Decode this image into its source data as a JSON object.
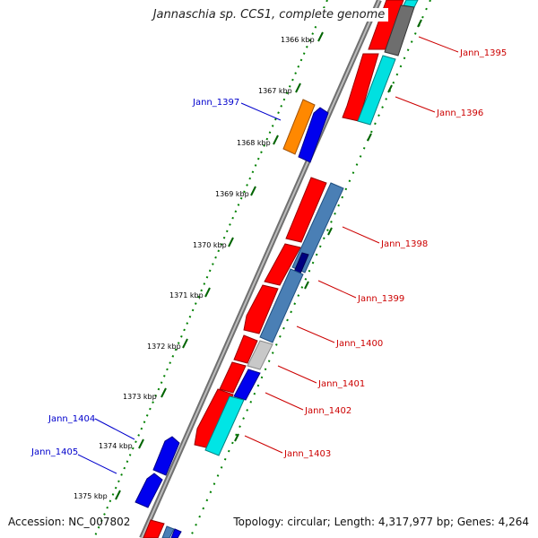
{
  "title": "Jannaschia sp. CCS1, complete genome",
  "footer": {
    "accession": "Accession: NC_007802",
    "topology": "Topology: circular; Length: 4,317,977 bp; Genes: 4,264"
  },
  "ruler": {
    "ticks": [
      "1366 kbp",
      "1367 kbp",
      "1368 kbp",
      "1369 kbp",
      "1370 kbp",
      "1371 kbp",
      "1372 kbp",
      "1373 kbp",
      "1374 kbp",
      "1375 kbp"
    ]
  },
  "genes": {
    "right_labels": [
      "Jann_1395",
      "Jann_1396",
      "Jann_1398",
      "Jann_1399",
      "Jann_1400",
      "Jann_1401",
      "Jann_1402",
      "Jann_1403"
    ],
    "left_labels": [
      "Jann_1397",
      "Jann_1404",
      "Jann_1405"
    ]
  },
  "colors": {
    "cds_red": "#ff0000",
    "cds_blue": "#0000ee",
    "cds_orange": "#ff8800",
    "track_steelblue": "#4a7fb5",
    "track_cyan": "#00e5e5",
    "track_gray": "#777777",
    "track_lightgray": "#c8c8c8",
    "track_navy": "#000080",
    "backbone": "#8a8a8a",
    "tick_green": "#008000",
    "label_red": "#cc0000",
    "label_blue": "#0000cc"
  }
}
